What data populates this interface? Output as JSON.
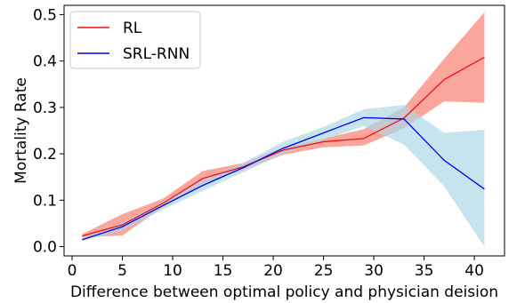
{
  "chart_data": {
    "type": "line",
    "xlabel": "Difference between optimal policy and physician deision",
    "ylabel": "Mortality Rate",
    "xlim": [
      -0.8,
      43.0
    ],
    "ylim": [
      -0.02,
      0.52
    ],
    "xticks": [
      0,
      5,
      10,
      15,
      20,
      25,
      30,
      35,
      40
    ],
    "yticks": [
      0.0,
      0.1,
      0.2,
      0.3,
      0.4,
      0.5
    ],
    "xtick_labels": [
      "0",
      "5",
      "10",
      "15",
      "20",
      "25",
      "30",
      "35",
      "40"
    ],
    "ytick_labels": [
      "0.0",
      "0.1",
      "0.2",
      "0.3",
      "0.4",
      "0.5"
    ],
    "grid": false,
    "legend_position": "top-left",
    "x": [
      1,
      5,
      9,
      13,
      17,
      21,
      25,
      29,
      33,
      37,
      41
    ],
    "series": [
      {
        "name": "RL",
        "color": "#ee1111",
        "band_color": "#fa8072",
        "values": [
          0.023,
          0.047,
          0.093,
          0.147,
          0.172,
          0.208,
          0.226,
          0.233,
          0.277,
          0.36,
          0.408
        ],
        "lower": [
          0.02,
          0.024,
          0.085,
          0.135,
          0.165,
          0.198,
          0.214,
          0.218,
          0.255,
          0.313,
          0.31
        ],
        "upper": [
          0.027,
          0.07,
          0.103,
          0.163,
          0.18,
          0.215,
          0.233,
          0.253,
          0.3,
          0.405,
          0.505
        ]
      },
      {
        "name": "SRL-RNN",
        "color": "#0000ee",
        "band_color": "#add8e6",
        "values": [
          0.015,
          0.043,
          0.088,
          0.132,
          0.17,
          0.212,
          0.245,
          0.278,
          0.275,
          0.186,
          0.124
        ],
        "lower": [
          0.012,
          0.035,
          0.08,
          0.12,
          0.16,
          0.2,
          0.23,
          0.26,
          0.22,
          0.13,
          0.0
        ],
        "upper": [
          0.018,
          0.052,
          0.096,
          0.145,
          0.18,
          0.226,
          0.258,
          0.296,
          0.305,
          0.245,
          0.252
        ]
      }
    ]
  }
}
